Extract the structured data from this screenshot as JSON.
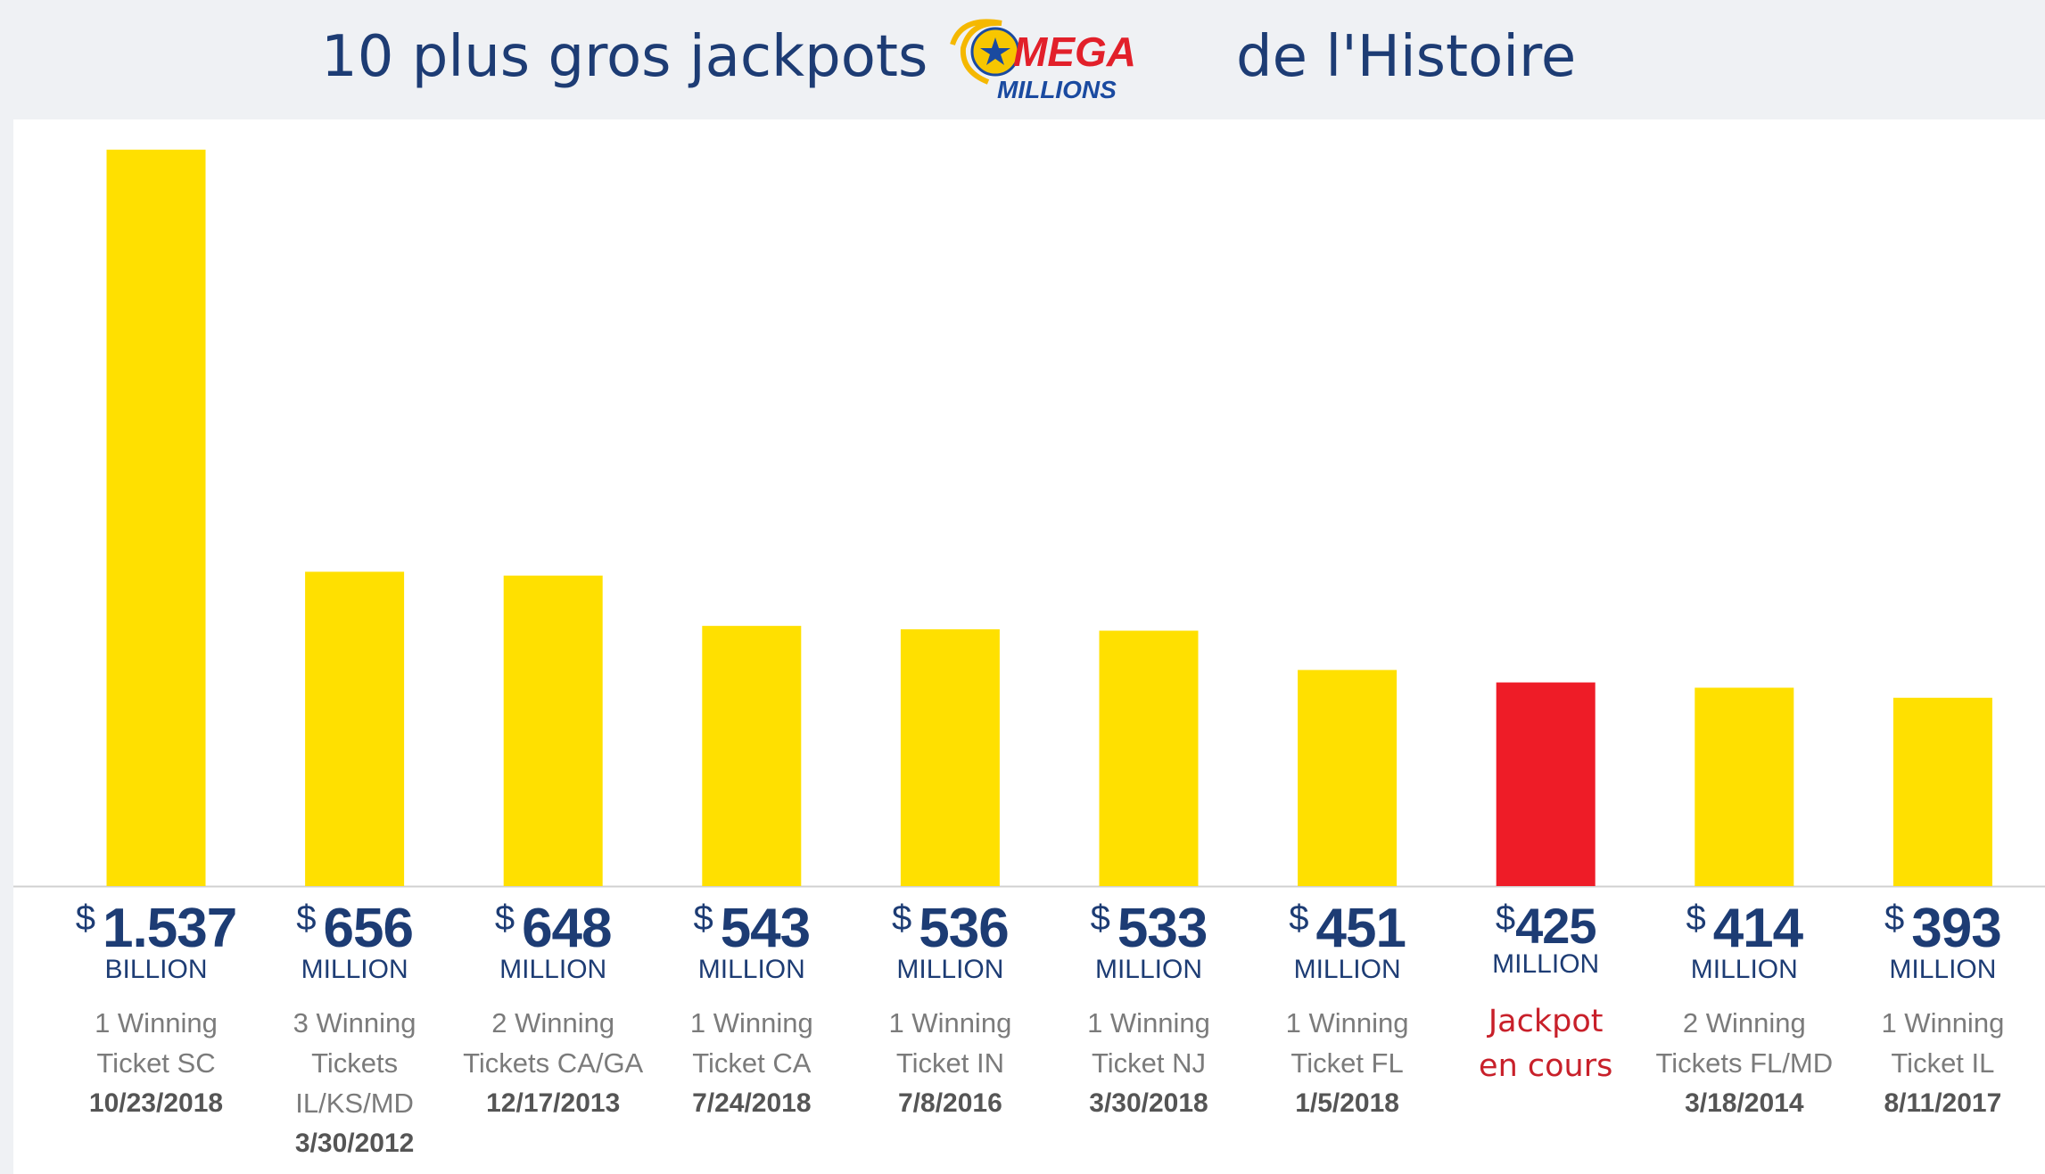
{
  "header": {
    "title_left": "10 plus gros jackpots",
    "title_right": "de l'Histoire",
    "logo": {
      "line1": "MEGA",
      "line2": "MILLIONS",
      "icon": "mega-millions-logo"
    }
  },
  "colors": {
    "title": "#1d3c74",
    "bar": "#ffe000",
    "bar_current": "#ee1c27",
    "amount": "#1d3c74",
    "desc": "#7b7b7b",
    "date": "#555555",
    "current_text": "#c8202a",
    "baseline": "#d0d0d0"
  },
  "chart_data": {
    "type": "bar",
    "title": "",
    "xlabel": "",
    "ylabel": "",
    "grid": false,
    "ylim": [
      0,
      1600
    ],
    "values": [
      1537,
      656,
      648,
      543,
      536,
      533,
      451,
      425,
      414,
      393
    ],
    "highlight_index": 7,
    "labels": [
      {
        "currency": "$",
        "amount": "1.537",
        "unit": "BILLION",
        "desc_lines": [
          "1 Winning",
          "Ticket SC"
        ],
        "date": "10/23/2018"
      },
      {
        "currency": "$",
        "amount": "656",
        "unit": "MILLION",
        "desc_lines": [
          "3 Winning",
          "Tickets",
          "IL/KS/MD"
        ],
        "date": "3/30/2012"
      },
      {
        "currency": "$",
        "amount": "648",
        "unit": "MILLION",
        "desc_lines": [
          "2 Winning",
          "Tickets CA/GA"
        ],
        "date": "12/17/2013"
      },
      {
        "currency": "$",
        "amount": "543",
        "unit": "MILLION",
        "desc_lines": [
          "1 Winning",
          "Ticket CA"
        ],
        "date": "7/24/2018"
      },
      {
        "currency": "$",
        "amount": "536",
        "unit": "MILLION",
        "desc_lines": [
          "1 Winning",
          "Ticket IN"
        ],
        "date": "7/8/2016"
      },
      {
        "currency": "$",
        "amount": "533",
        "unit": "MILLION",
        "desc_lines": [
          "1 Winning",
          "Ticket NJ"
        ],
        "date": "3/30/2018"
      },
      {
        "currency": "$",
        "amount": "451",
        "unit": "MILLION",
        "desc_lines": [
          "1 Winning",
          "Ticket FL"
        ],
        "date": "1/5/2018"
      },
      {
        "currency": "$",
        "amount": "425",
        "unit": "MILLION",
        "desc_lines": [
          "Jackpot",
          "en cours"
        ],
        "date": ""
      },
      {
        "currency": "$",
        "amount": "414",
        "unit": "MILLION",
        "desc_lines": [
          "2 Winning",
          "Tickets FL/MD"
        ],
        "date": "3/18/2014"
      },
      {
        "currency": "$",
        "amount": "393",
        "unit": "MILLION",
        "desc_lines": [
          "1 Winning",
          "Ticket IL"
        ],
        "date": "8/11/2017"
      }
    ]
  }
}
